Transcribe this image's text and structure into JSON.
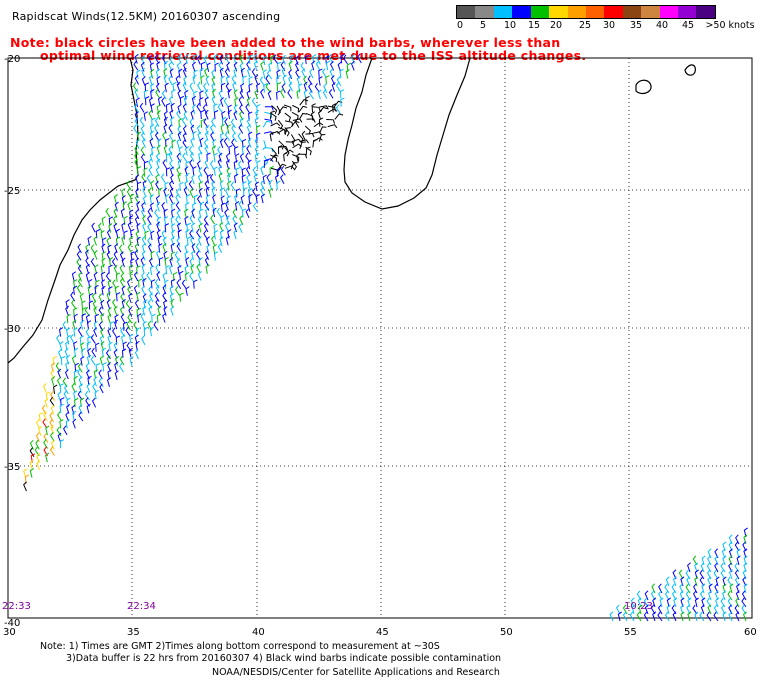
{
  "header": {
    "title": "Rapidscat Winds(12.5KM) 20160307 ascending",
    "note_line1": "Note: black circles have been added to the wind barbs, wherever less than",
    "note_line2": "optimal wind retrieval conditions are met due to the ISS altitude changes."
  },
  "legend": {
    "unit_label": ">50 knots",
    "ticks": [
      "0",
      "5",
      "10",
      "15",
      "20",
      "25",
      "30",
      "35",
      "40",
      "45"
    ],
    "colors": [
      "#555555",
      "#888888",
      "#00bfff",
      "#0000ff",
      "#00c000",
      "#ffd800",
      "#ffa000",
      "#ff6000",
      "#ff0000",
      "#8b4513",
      "#cd853f",
      "#ff00ff",
      "#9400d3",
      "#4b0082"
    ]
  },
  "axes": {
    "lon_labels": [
      "30",
      "35",
      "40",
      "45",
      "50",
      "55",
      "60"
    ],
    "lat_labels": [
      "-20",
      "-25",
      "-30",
      "-35",
      "-40"
    ]
  },
  "pass_times": [
    "22:33",
    "22:34",
    "10:23"
  ],
  "footer": {
    "line1": "Note: 1) Times are GMT 2)Times along bottom correspond to measurement at ~30S",
    "line2": "3)Data buffer is 22 hrs from 20160307 4) Black wind barbs indicate possible contamination",
    "credit": "NOAA/NESDIS/Center for Satellite Applications and Research"
  }
}
